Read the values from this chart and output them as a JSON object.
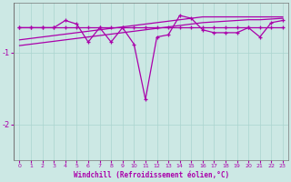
{
  "xlabel": "Windchill (Refroidissement éolien,°C)",
  "background_color": "#cce8e4",
  "grid_color": "#aad4cf",
  "line_color": "#aa00aa",
  "x": [
    0,
    1,
    2,
    3,
    4,
    5,
    6,
    7,
    8,
    9,
    10,
    11,
    12,
    13,
    14,
    15,
    16,
    17,
    18,
    19,
    20,
    21,
    22,
    23
  ],
  "y_flat": [
    -0.65,
    -0.65,
    -0.65,
    -0.65,
    -0.65,
    -0.65,
    -0.65,
    -0.65,
    -0.65,
    -0.65,
    -0.65,
    -0.65,
    -0.65,
    -0.65,
    -0.65,
    -0.65,
    -0.65,
    -0.65,
    -0.65,
    -0.65,
    -0.65,
    -0.65,
    -0.65,
    -0.65
  ],
  "y_jagged": [
    -0.65,
    -0.65,
    -0.65,
    -0.65,
    -0.55,
    -0.6,
    -0.85,
    -0.65,
    -0.85,
    -0.65,
    -0.88,
    -1.65,
    -0.78,
    -0.75,
    -0.48,
    -0.52,
    -0.68,
    -0.72,
    -0.72,
    -0.72,
    -0.65,
    -0.78,
    -0.58,
    -0.55
  ],
  "y_trend1": [
    -0.82,
    -0.8,
    -0.78,
    -0.76,
    -0.74,
    -0.72,
    -0.7,
    -0.68,
    -0.66,
    -0.64,
    -0.62,
    -0.6,
    -0.58,
    -0.56,
    -0.54,
    -0.52,
    -0.5,
    -0.5,
    -0.5,
    -0.5,
    -0.5,
    -0.5,
    -0.5,
    -0.5
  ],
  "y_trend2": [
    -0.9,
    -0.88,
    -0.86,
    -0.84,
    -0.82,
    -0.8,
    -0.78,
    -0.76,
    -0.74,
    -0.72,
    -0.7,
    -0.68,
    -0.66,
    -0.64,
    -0.62,
    -0.6,
    -0.58,
    -0.57,
    -0.56,
    -0.55,
    -0.54,
    -0.54,
    -0.53,
    -0.52
  ],
  "ylim": [
    -2.5,
    -0.3
  ],
  "yticks": [
    -2,
    -1
  ],
  "xlim": [
    -0.5,
    23.5
  ],
  "xticks": [
    0,
    1,
    2,
    3,
    4,
    5,
    6,
    7,
    8,
    9,
    10,
    11,
    12,
    13,
    14,
    15,
    16,
    17,
    18,
    19,
    20,
    21,
    22,
    23
  ]
}
